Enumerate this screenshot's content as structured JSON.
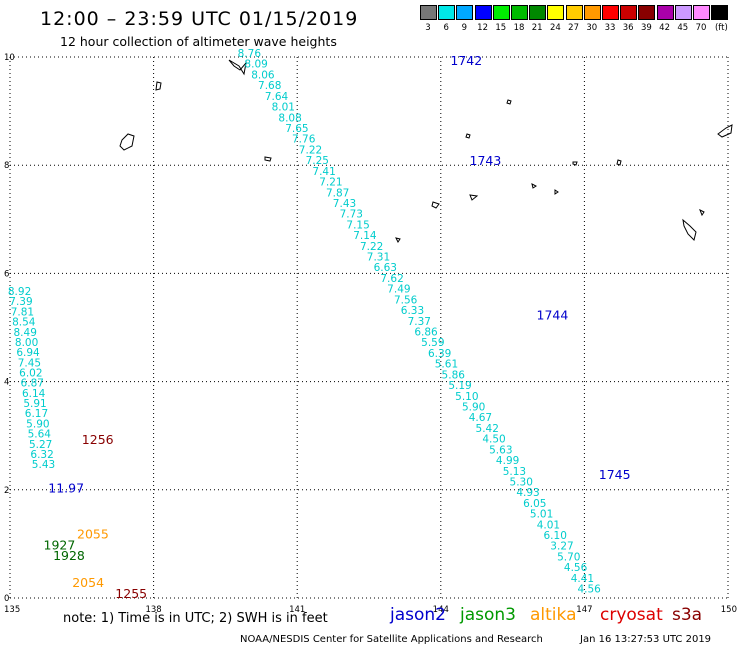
{
  "header": {
    "title": "12:00 – 23:59 UTC 01/15/2019",
    "subtitle": "12 hour collection of altimeter wave heights"
  },
  "colorbar": {
    "unit": "(ft)",
    "bins": [
      {
        "label": "3",
        "color": "#777777"
      },
      {
        "label": "6",
        "color": "#00e8e8"
      },
      {
        "label": "9",
        "color": "#00a8ff"
      },
      {
        "label": "12",
        "color": "#0000ff"
      },
      {
        "label": "15",
        "color": "#00ee00"
      },
      {
        "label": "18",
        "color": "#00bb00"
      },
      {
        "label": "21",
        "color": "#008800"
      },
      {
        "label": "24",
        "color": "#ffff00"
      },
      {
        "label": "27",
        "color": "#ffcc00"
      },
      {
        "label": "30",
        "color": "#ff9900"
      },
      {
        "label": "33",
        "color": "#ff0000"
      },
      {
        "label": "36",
        "color": "#cc0000"
      },
      {
        "label": "39",
        "color": "#880000"
      },
      {
        "label": "42",
        "color": "#aa00aa"
      },
      {
        "label": "45",
        "color": "#cc99ff"
      },
      {
        "label": "70",
        "color": "#ff88ff"
      },
      {
        "label": "",
        "color": "#000000"
      }
    ]
  },
  "axes": {
    "lon_ticks": [
      "135",
      "138",
      "141",
      "144",
      "147",
      "150"
    ],
    "lat_ticks": [
      "0",
      "2",
      "4",
      "6",
      "8",
      "10"
    ]
  },
  "chart_data": {
    "type": "scatter",
    "x_axis": "longitude (deg E)",
    "y_axis": "latitude (deg N)",
    "xlim": [
      135,
      150
    ],
    "ylim": [
      0,
      10
    ],
    "grid": true,
    "value_units": "ft",
    "tracks": [
      {
        "satellite": "jason2",
        "color": "#00cccc",
        "start": [
          140.0,
          10.0
        ],
        "end": [
          147.1,
          0.1
        ],
        "values": [
          "8.76",
          "8.09",
          "8.06",
          "7.68",
          "7.64",
          "8.01",
          "8.08",
          "7.65",
          "7.76",
          "7.22",
          "7.25",
          "7.41",
          "7.21",
          "7.87",
          "7.43",
          "7.73",
          "7.15",
          "7.14",
          "7.22",
          "7.31",
          "6.63",
          "7.62",
          "7.49",
          "7.56",
          "6.33",
          "7.37",
          "6.86",
          "5.59",
          "6.39",
          "5.61",
          "5.86",
          "5.19",
          "5.10",
          "5.90",
          "4.67",
          "5.42",
          "4.50",
          "5.63",
          "4.99",
          "5.13",
          "5.30",
          "4.93",
          "6.05",
          "5.01",
          "4.01",
          "6.10",
          "3.27",
          "5.70",
          "4.56",
          "4.41",
          "4.56"
        ]
      },
      {
        "satellite": "jason2",
        "color": "#00cccc",
        "start": [
          135.2,
          5.6
        ],
        "end": [
          135.7,
          2.4
        ],
        "values": [
          "8.92",
          "7.39",
          "7.81",
          "8.54",
          "8.49",
          "8.00",
          "6.94",
          "7.45",
          "6.02",
          "6.87",
          "6.14",
          "5.91",
          "6.17",
          "5.90",
          "5.64",
          "5.27",
          "6.32",
          "5.43"
        ]
      }
    ],
    "time_labels": [
      {
        "text": "1742",
        "satellite": "jason2",
        "color": "#0000cc",
        "lon": 144.2,
        "lat": 9.85
      },
      {
        "text": "1743",
        "satellite": "jason2",
        "color": "#0000cc",
        "lon": 144.6,
        "lat": 8.0
      },
      {
        "text": "1744",
        "satellite": "jason2",
        "color": "#0000cc",
        "lon": 146.0,
        "lat": 5.15
      },
      {
        "text": "1745",
        "satellite": "jason2",
        "color": "#0000cc",
        "lon": 147.3,
        "lat": 2.2
      },
      {
        "text": "1256",
        "satellite": "s3a",
        "color": "#880000",
        "lon": 136.5,
        "lat": 2.85
      },
      {
        "text": "1255",
        "satellite": "s3a",
        "color": "#880000",
        "lon": 137.2,
        "lat": 0.0
      },
      {
        "text": "1927",
        "satellite": "jason3",
        "color": "#006600",
        "lon": 135.7,
        "lat": 0.9
      },
      {
        "text": "1928",
        "satellite": "jason3",
        "color": "#006600",
        "lon": 135.9,
        "lat": 0.7
      },
      {
        "text": "2055",
        "satellite": "altika",
        "color": "#ff9900",
        "lon": 136.4,
        "lat": 1.1
      },
      {
        "text": "2054",
        "satellite": "altika",
        "color": "#ff9900",
        "lon": 136.3,
        "lat": 0.2
      },
      {
        "text": "11.97",
        "satellite": "jason2",
        "color": "#0000cc",
        "lon": 135.8,
        "lat": 1.95
      }
    ]
  },
  "satellites": [
    {
      "label": "jason2",
      "color": "#0000cc"
    },
    {
      "label": "jason3",
      "color": "#009900"
    },
    {
      "label": "altika",
      "color": "#ff9900"
    },
    {
      "label": "cryosat",
      "color": "#dd0000"
    },
    {
      "label": "s3a",
      "color": "#880000"
    }
  ],
  "note": "note:  1) Time is in UTC;  2) SWH is in feet",
  "footer": {
    "credit": "NOAA/NESDIS Center for Satellite Applications and Research",
    "timestamp": "Jan 16 13:27:53 UTC 2019"
  }
}
